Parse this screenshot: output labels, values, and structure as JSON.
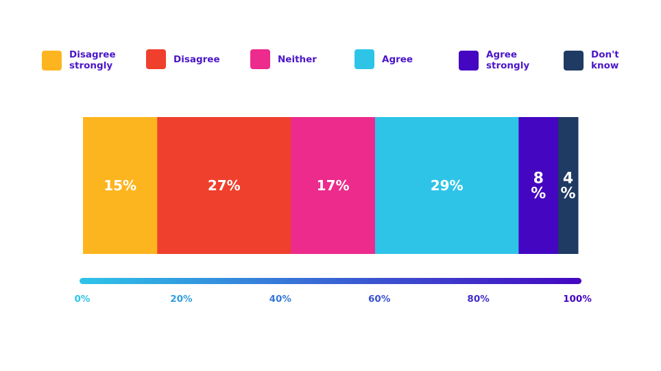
{
  "chart_data": {
    "type": "bar",
    "orientation": "horizontal-stacked-100",
    "categories": [
      "Disagree strongly",
      "Disagree",
      "Neither",
      "Agree",
      "Agree strongly",
      "Don't know"
    ],
    "values": [
      15,
      27,
      17,
      29,
      8,
      4
    ],
    "data_labels": [
      "15%",
      "27%",
      "17%",
      "29%",
      "8\n%",
      "4\n%"
    ],
    "colors": [
      "#FDB51F",
      "#EF402D",
      "#EC2B8C",
      "#2EC4E8",
      "#4406C1",
      "#1F3A63"
    ],
    "legend": [
      {
        "label": "Disagree\nstrongly",
        "color": "#FDB51F"
      },
      {
        "label": "Disagree",
        "color": "#EF402D"
      },
      {
        "label": "Neither",
        "color": "#EC2B8C"
      },
      {
        "label": "Agree",
        "color": "#2EC4E8"
      },
      {
        "label": "Agree\nstrongly",
        "color": "#4406C1"
      },
      {
        "label": "Don't\nknow",
        "color": "#1F3A63"
      }
    ],
    "legend_position": "top",
    "xlim": [
      0,
      100
    ],
    "x_ticks": [
      0,
      20,
      40,
      60,
      80,
      100
    ],
    "x_tick_labels": [
      "0%",
      "20%",
      "40%",
      "60%",
      "80%",
      "100%"
    ],
    "axis_gradient": [
      "#2EC4E8",
      "#4406C1"
    ],
    "title": "",
    "xlabel": "",
    "ylabel": "",
    "grid": false
  }
}
